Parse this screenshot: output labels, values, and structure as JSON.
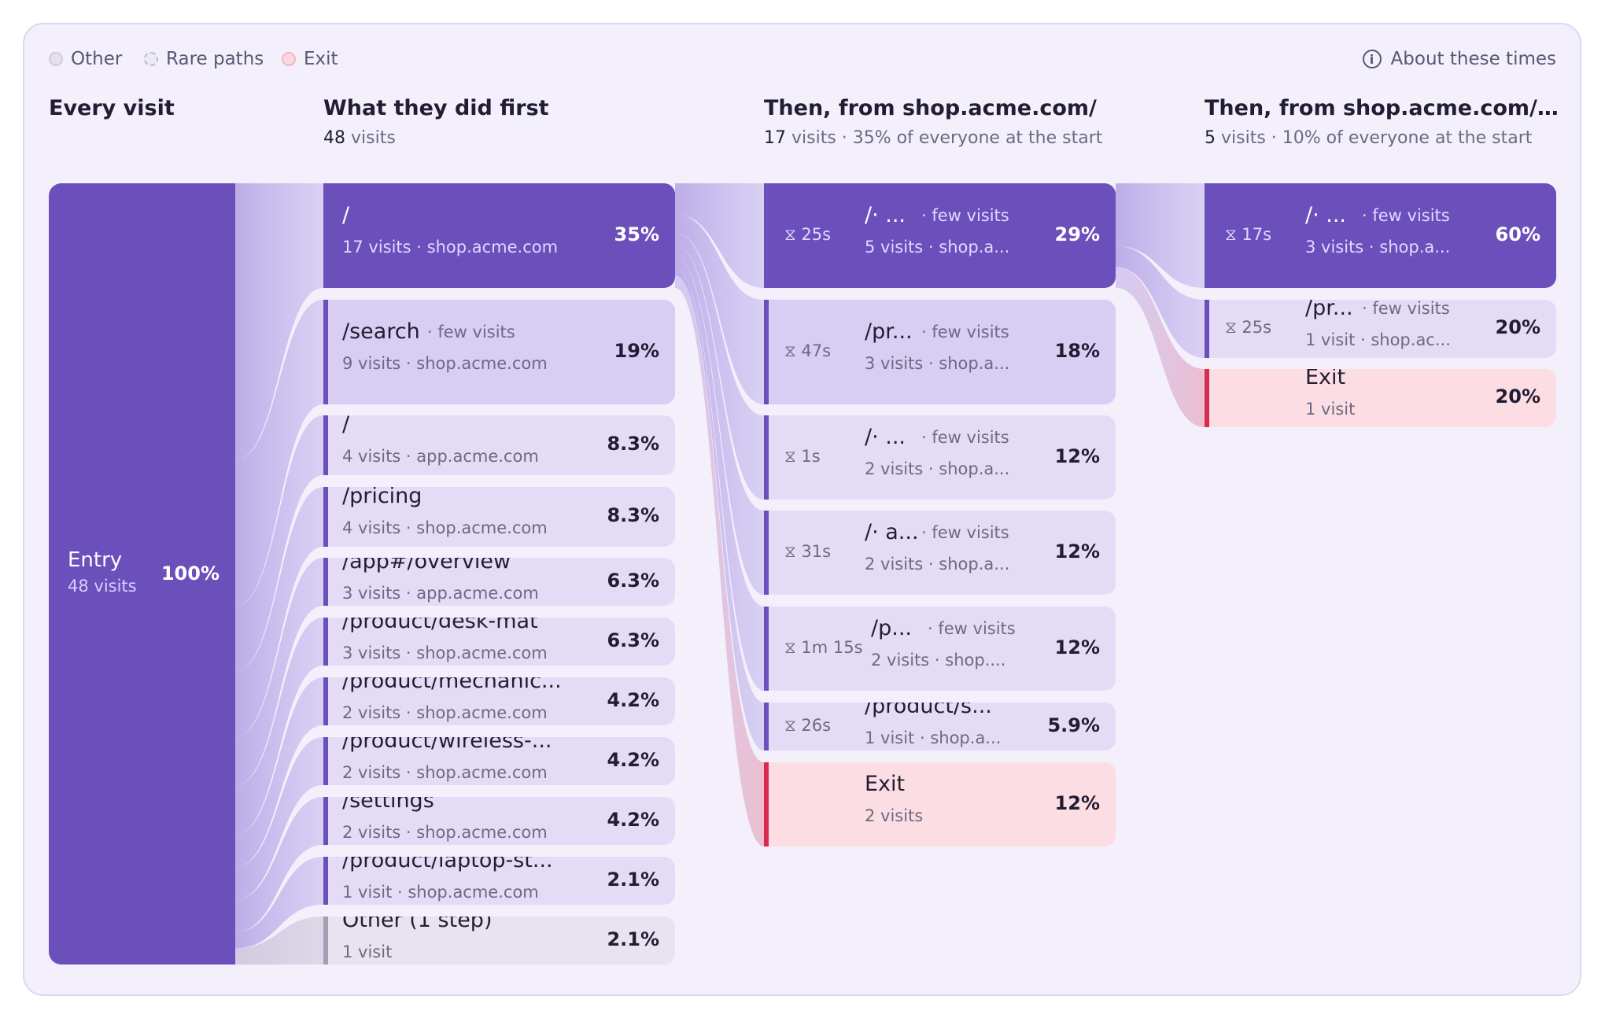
{
  "legend": {
    "items": [
      {
        "label": "Other",
        "fill": "#e4e0ee",
        "border": "#cfc9dd"
      },
      {
        "label": "Rare paths",
        "fill": "#eceaf3",
        "border": "#bdb7cc"
      },
      {
        "label": "Exit",
        "fill": "#fbd9e0",
        "border": "#f2b6c2"
      }
    ],
    "about_label": "About these times"
  },
  "columns": [
    {
      "title": "Every visit",
      "count": "",
      "count_suffix": ""
    },
    {
      "title": "What they did first",
      "count": "48",
      "count_suffix": " visits"
    },
    {
      "title": "Then, from shop.acme.com/",
      "count": "17",
      "count_suffix": " visits · 35% of everyone at the start"
    },
    {
      "title": "Then, from shop.acme.com/ · filt...",
      "count": "5",
      "count_suffix": " visits · 10% of everyone at the start"
    }
  ],
  "entry": {
    "label": "Entry",
    "sub": "48 visits",
    "pct": "100%"
  },
  "step1": [
    {
      "title": "/",
      "few": "",
      "sub": "17 visits · shop.acme.com",
      "pct": "35%",
      "kind": "dark"
    },
    {
      "title": "/search",
      "few": "· few visits",
      "sub": "9 visits · shop.acme.com",
      "pct": "19%",
      "kind": "med"
    },
    {
      "title": "/",
      "few": "",
      "sub": "4 visits · app.acme.com",
      "pct": "8.3%",
      "kind": "light"
    },
    {
      "title": "/pricing",
      "few": "",
      "sub": "4 visits · shop.acme.com",
      "pct": "8.3%",
      "kind": "light"
    },
    {
      "title": "/app#/overview",
      "few": "",
      "sub": "3 visits · app.acme.com",
      "pct": "6.3%",
      "kind": "light"
    },
    {
      "title": "/product/desk-mat",
      "few": "",
      "sub": "3 visits · shop.acme.com",
      "pct": "6.3%",
      "kind": "light"
    },
    {
      "title": "/product/mechanic...",
      "few": "",
      "sub": "2 visits · shop.acme.com",
      "pct": "4.2%",
      "kind": "light"
    },
    {
      "title": "/product/wireless-...",
      "few": "",
      "sub": "2 visits · shop.acme.com",
      "pct": "4.2%",
      "kind": "light"
    },
    {
      "title": "/settings",
      "few": "",
      "sub": "2 visits · shop.acme.com",
      "pct": "4.2%",
      "kind": "light"
    },
    {
      "title": "/product/laptop-st...",
      "few": "",
      "sub": "1 visit · shop.acme.com",
      "pct": "2.1%",
      "kind": "light"
    },
    {
      "title": "Other (1 step)",
      "few": "",
      "sub": "1 visit",
      "pct": "2.1%",
      "kind": "other"
    }
  ],
  "step2": [
    {
      "time": "25s",
      "title": "/· ...",
      "few": "· few visits",
      "sub": "5 visits · shop.a...",
      "pct": "29%",
      "kind": "dark"
    },
    {
      "time": "47s",
      "title": "/pr...",
      "few": "· few visits",
      "sub": "3 visits · shop.a...",
      "pct": "18%",
      "kind": "med"
    },
    {
      "time": "1s",
      "title": "/· ...",
      "few": "· few visits",
      "sub": "2 visits · shop.a...",
      "pct": "12%",
      "kind": "light"
    },
    {
      "time": "31s",
      "title": "/· a...",
      "few": "· few visits",
      "sub": "2 visits · shop.a...",
      "pct": "12%",
      "kind": "light"
    },
    {
      "time": "1m 15s",
      "title": "/p...",
      "few": "· few visits",
      "sub": "2 visits · shop....",
      "pct": "12%",
      "kind": "light"
    },
    {
      "time": "26s",
      "title": "/product/s...",
      "few": "",
      "sub": "1 visit · shop.a...",
      "pct": "5.9%",
      "kind": "light"
    },
    {
      "time": "",
      "title": "Exit",
      "few": "",
      "sub": "2 visits",
      "pct": "12%",
      "kind": "exit"
    }
  ],
  "step3": [
    {
      "time": "17s",
      "title": "/· ...",
      "few": "· few visits",
      "sub": "3 visits · shop.a...",
      "pct": "60%",
      "kind": "dark"
    },
    {
      "time": "25s",
      "title": "/pr...",
      "few": "· few visits",
      "sub": "1 visit · shop.ac...",
      "pct": "20%",
      "kind": "light"
    },
    {
      "time": "",
      "title": "Exit",
      "few": "",
      "sub": "1 visit",
      "pct": "20%",
      "kind": "exit"
    }
  ],
  "colors": {
    "dark": "#6b4fbb",
    "med": "#d8cdf3",
    "light": "#e4dcf7",
    "other": "#e7e3ef",
    "exit": "#fcdde3",
    "bar_purple": "#6b4fbb",
    "bar_exit": "#d92b4f",
    "bar_other": "#a49fb3"
  }
}
